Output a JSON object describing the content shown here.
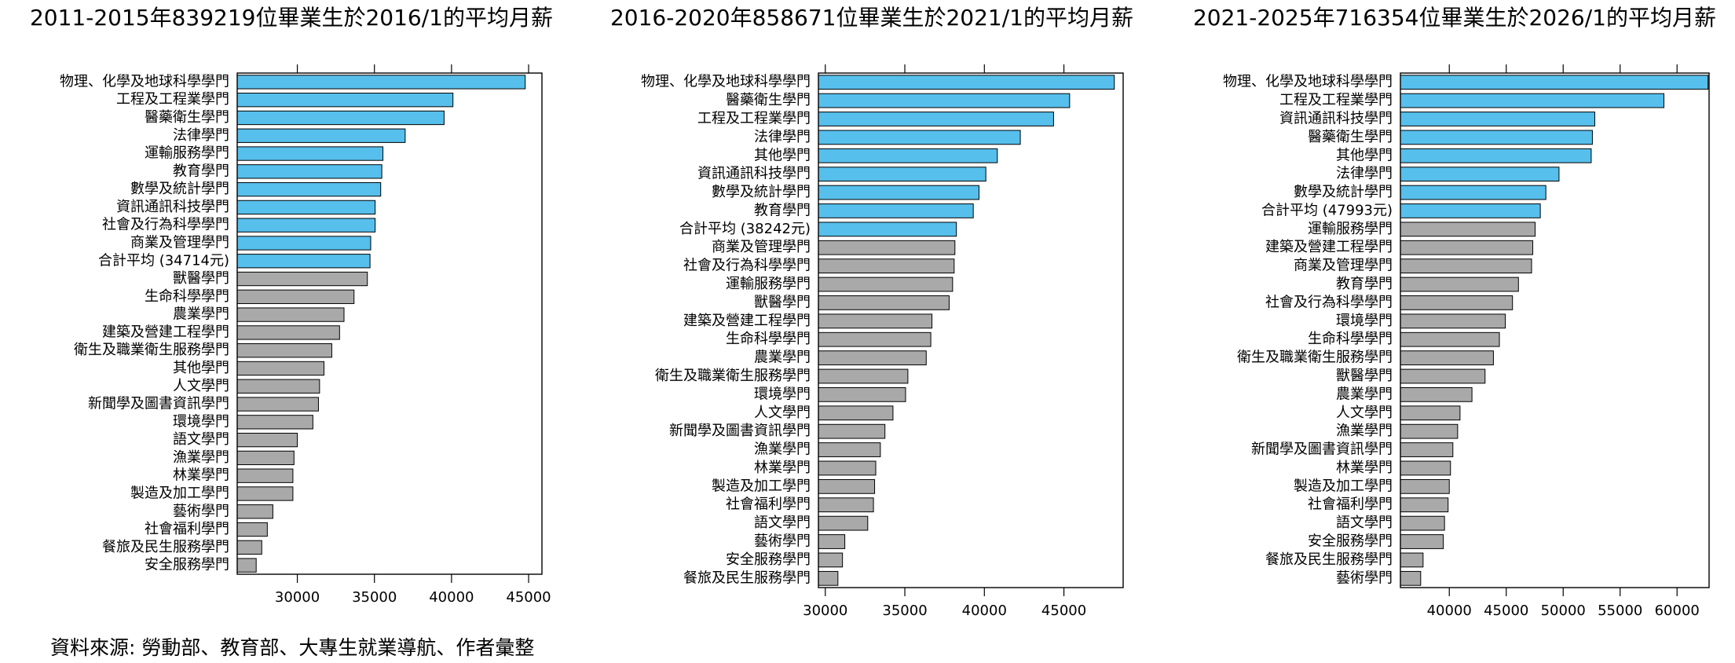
{
  "source": "資料來源: 勞動部、教育部、大專生就業導航、作者彙整",
  "chart_data": [
    {
      "type": "bar",
      "orientation": "horizontal",
      "title": "2011-2015年839219位畢業生於2016/1的平均月薪",
      "categories": [
        "物理、化學及地球科學學門",
        "工程及工程業學門",
        "醫藥衛生學門",
        "法律學門",
        "運輸服務學門",
        "教育學門",
        "數學及統計學門",
        "資訊通訊科技學門",
        "社會及行為科學學門",
        "商業及管理學門",
        "合計平均 (34714元)",
        "獸醫學門",
        "生命科學學門",
        "農業學門",
        "建築及營建工程學門",
        "衛生及職業衛生服務學門",
        "其他學門",
        "人文學門",
        "新聞學及圖書資訊學門",
        "環境學門",
        "語文學門",
        "漁業學門",
        "林業學門",
        "製造及加工學門",
        "藝術學門",
        "社會福利學門",
        "餐旅及民生服務學門",
        "安全服務學門"
      ],
      "values": [
        44780,
        40094,
        39518,
        36994,
        35552,
        35480,
        35408,
        35047,
        35047,
        34759,
        34714,
        34542,
        33677,
        33028,
        32740,
        32235,
        31730,
        31442,
        31370,
        31009,
        30000,
        29784,
        29712,
        29712,
        28414,
        28053,
        27693,
        27332
      ],
      "colors": [
        "#56bfec",
        "#56bfec",
        "#56bfec",
        "#56bfec",
        "#56bfec",
        "#56bfec",
        "#56bfec",
        "#56bfec",
        "#56bfec",
        "#56bfec",
        "#56bfec",
        "#a9a9a9",
        "#a9a9a9",
        "#a9a9a9",
        "#a9a9a9",
        "#a9a9a9",
        "#a9a9a9",
        "#a9a9a9",
        "#a9a9a9",
        "#a9a9a9",
        "#a9a9a9",
        "#a9a9a9",
        "#a9a9a9",
        "#a9a9a9",
        "#a9a9a9",
        "#a9a9a9",
        "#a9a9a9",
        "#a9a9a9"
      ],
      "xlim": [
        26100,
        45865
      ],
      "xticks": [
        30000,
        35000,
        40000,
        45000
      ]
    },
    {
      "type": "bar",
      "orientation": "horizontal",
      "title": "2016-2020年858671位畢業生於2021/1的平均月薪",
      "categories": [
        "物理、化學及地球科學學門",
        "醫藥衛生學門",
        "工程及工程業學門",
        "法律學門",
        "其他學門",
        "資訊通訊科技學門",
        "數學及統計學門",
        "教育學門",
        "合計平均 (38242元)",
        "商業及管理學門",
        "社會及行為科學學門",
        "運輸服務學門",
        "獸醫學門",
        "建築及營建工程學門",
        "生命科學學門",
        "農業學門",
        "衛生及職業衛生服務學門",
        "環境學門",
        "人文學門",
        "新聞學及圖書資訊學門",
        "漁業學門",
        "林業學門",
        "製造及加工學門",
        "社會福利學門",
        "語文學門",
        "藝術學門",
        "安全服務學門",
        "餐旅及民生服務學門"
      ],
      "values": [
        48170,
        45360,
        44350,
        42260,
        40815,
        40094,
        39662,
        39302,
        38242,
        38148,
        38100,
        38003,
        37787,
        36705,
        36633,
        36345,
        35191,
        35047,
        34254,
        33749,
        33461,
        33172,
        33100,
        33028,
        32668,
        31226,
        31081,
        30793
      ],
      "colors": [
        "#56bfec",
        "#56bfec",
        "#56bfec",
        "#56bfec",
        "#56bfec",
        "#56bfec",
        "#56bfec",
        "#56bfec",
        "#56bfec",
        "#a9a9a9",
        "#a9a9a9",
        "#a9a9a9",
        "#a9a9a9",
        "#a9a9a9",
        "#a9a9a9",
        "#a9a9a9",
        "#a9a9a9",
        "#a9a9a9",
        "#a9a9a9",
        "#a9a9a9",
        "#a9a9a9",
        "#a9a9a9",
        "#a9a9a9",
        "#a9a9a9",
        "#a9a9a9",
        "#a9a9a9",
        "#a9a9a9",
        "#a9a9a9"
      ],
      "xlim": [
        29567,
        48725
      ],
      "xticks": [
        30000,
        35000,
        40000,
        45000
      ]
    },
    {
      "type": "bar",
      "orientation": "horizontal",
      "title": "2021-2025年716354位畢業生於2026/1的平均月薪",
      "categories": [
        "物理、化學及地球科學學門",
        "工程及工程業學門",
        "資訊通訊科技學門",
        "醫藥衛生學門",
        "其他學門",
        "法律學門",
        "數學及統計學門",
        "合計平均 (47993元)",
        "運輸服務學門",
        "建築及營建工程學門",
        "商業及管理學門",
        "教育學門",
        "社會及行為科學學門",
        "環境學門",
        "生命科學學門",
        "衛生及職業衛生服務學門",
        "獸醫學門",
        "農業學門",
        "人文學門",
        "漁業學門",
        "新聞學及圖書資訊學門",
        "林業學門",
        "製造及加工學門",
        "社會福利學門",
        "語文學門",
        "安全服務學門",
        "餐旅及民生服務學門",
        "藝術學門"
      ],
      "values": [
        62722,
        58848,
        52775,
        52565,
        52461,
        49634,
        48482,
        47993,
        47539,
        47330,
        47225,
        46073,
        45550,
        44921,
        44398,
        43874,
        43141,
        41990,
        40942,
        40733,
        40314,
        40105,
        40000,
        39895,
        39581,
        39476,
        37696,
        37487
      ],
      "colors": [
        "#56bfec",
        "#56bfec",
        "#56bfec",
        "#56bfec",
        "#56bfec",
        "#56bfec",
        "#56bfec",
        "#56bfec",
        "#a9a9a9",
        "#a9a9a9",
        "#a9a9a9",
        "#a9a9a9",
        "#a9a9a9",
        "#a9a9a9",
        "#a9a9a9",
        "#a9a9a9",
        "#a9a9a9",
        "#a9a9a9",
        "#a9a9a9",
        "#a9a9a9",
        "#a9a9a9",
        "#a9a9a9",
        "#a9a9a9",
        "#a9a9a9",
        "#a9a9a9",
        "#a9a9a9",
        "#a9a9a9",
        "#a9a9a9"
      ],
      "xlim": [
        35707,
        62812
      ],
      "xticks": [
        40000,
        45000,
        50000,
        55000,
        60000
      ]
    }
  ]
}
